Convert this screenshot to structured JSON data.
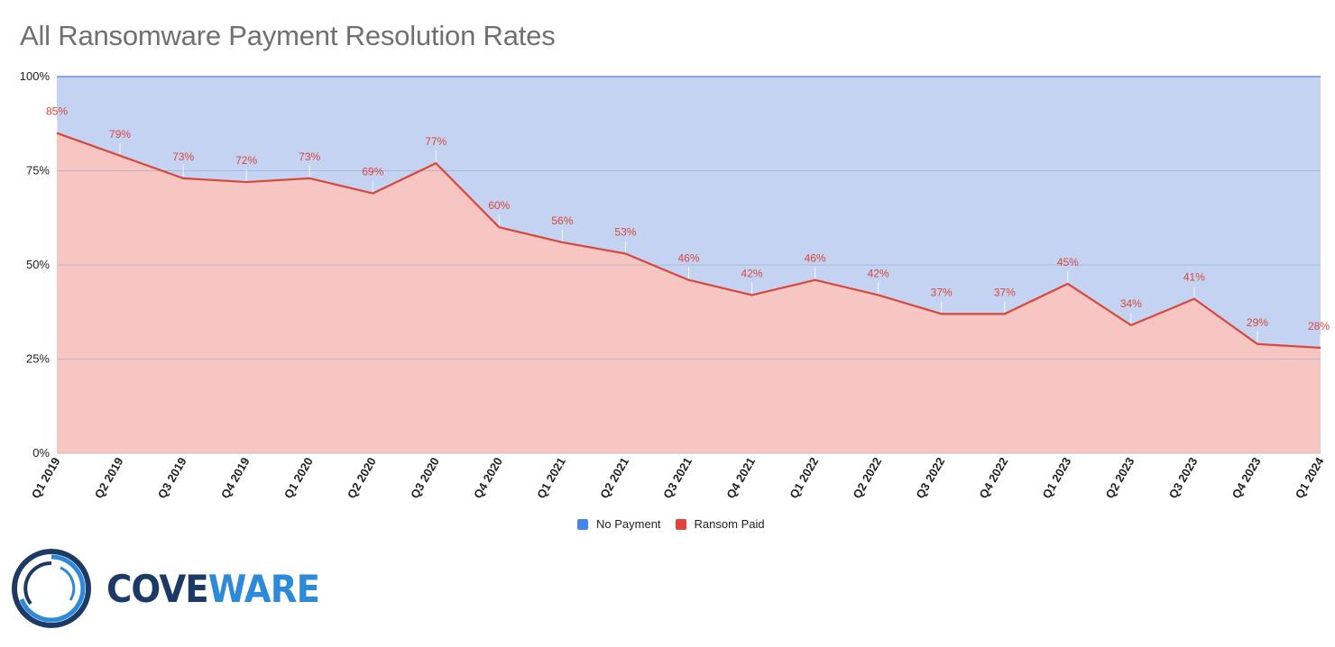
{
  "chart_data": {
    "type": "area",
    "title": "All Ransomware Payment Resolution Rates",
    "categories": [
      "Q1 2019",
      "Q2 2019",
      "Q3 2019",
      "Q4 2019",
      "Q1 2020",
      "Q2 2020",
      "Q3 2020",
      "Q4 2020",
      "Q1 2021",
      "Q2 2021",
      "Q3 2021",
      "Q4 2021",
      "Q1 2022",
      "Q2 2022",
      "Q3 2022",
      "Q4 2022",
      "Q1 2023",
      "Q2 2023",
      "Q3 2023",
      "Q4 2023",
      "Q1 2024"
    ],
    "series": [
      {
        "name": "No Payment",
        "values": [
          15,
          21,
          27,
          28,
          27,
          31,
          23,
          40,
          44,
          47,
          54,
          58,
          54,
          58,
          63,
          63,
          55,
          66,
          59,
          71,
          72
        ],
        "color": "#c5d3f2"
      },
      {
        "name": "Ransom Paid",
        "values": [
          85,
          79,
          73,
          72,
          73,
          69,
          77,
          60,
          56,
          53,
          46,
          42,
          46,
          42,
          37,
          37,
          45,
          34,
          41,
          29,
          28
        ],
        "color": "#f7c6c3",
        "line_color": "#d9463a"
      }
    ],
    "data_labels": [
      "85%",
      "79%",
      "73%",
      "72%",
      "73%",
      "69%",
      "77%",
      "60%",
      "56%",
      "53%",
      "46%",
      "42%",
      "46%",
      "42%",
      "37%",
      "37%",
      "45%",
      "34%",
      "41%",
      "29%",
      "28%"
    ],
    "stacked": "percent",
    "ylim": [
      0,
      100
    ],
    "yticks": [
      0,
      25,
      50,
      75,
      100
    ],
    "ytick_labels": [
      "0%",
      "25%",
      "50%",
      "75%",
      "100%"
    ],
    "grid": true,
    "legend_position": "bottom",
    "xlabel": "",
    "ylabel": ""
  },
  "legend": {
    "items": [
      {
        "label": "No Payment",
        "color": "#4a86e8"
      },
      {
        "label": "Ransom Paid",
        "color": "#e0443a"
      }
    ]
  },
  "logo": {
    "text_part1": "COVE",
    "text_part2": "WARE"
  }
}
